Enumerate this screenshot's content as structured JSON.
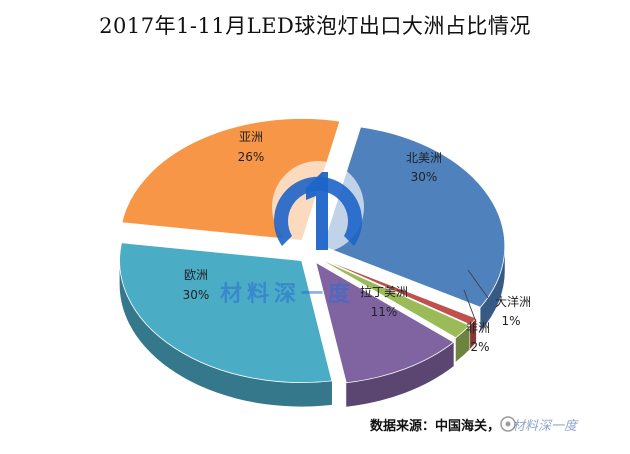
{
  "chart_data": {
    "type": "pie",
    "title": "2017年1-11月LED球泡灯出口大洲占比情况",
    "slices": [
      {
        "label": "北美洲",
        "value": 30,
        "value_label": "30%",
        "color": "#4F81BD"
      },
      {
        "label": "大洋洲",
        "value": 1,
        "value_label": "1%",
        "color": "#C0504D"
      },
      {
        "label": "非洲",
        "value": 2,
        "value_label": "2%",
        "color": "#9BBB59"
      },
      {
        "label": "拉丁美洲",
        "value": 11,
        "value_label": "11%",
        "color": "#8064A2"
      },
      {
        "label": "欧洲",
        "value": 30,
        "value_label": "30%",
        "color": "#4BACC6"
      },
      {
        "label": "亚洲",
        "value": 26,
        "value_label": "26%",
        "color": "#F79646"
      }
    ]
  },
  "source": "数据来源：中国海关，",
  "watermark": {
    "text": "材料深一度",
    "source_suffix": "材料深一度",
    "icon_color": "#1E64C8"
  }
}
